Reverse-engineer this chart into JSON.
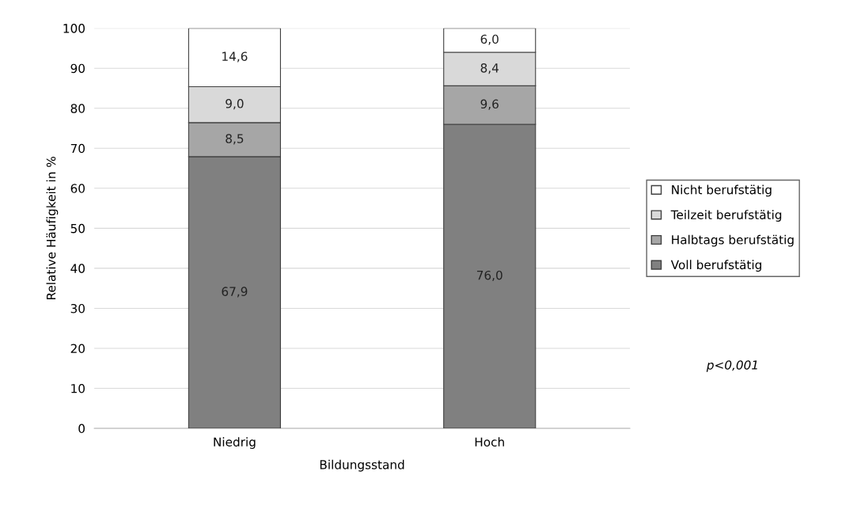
{
  "chart_data": {
    "type": "bar",
    "stacked": true,
    "xlabel": "Bildungsstand",
    "ylabel": "Relative Häufigkeit in %",
    "categories": [
      "Niedrig",
      "Hoch"
    ],
    "series": [
      {
        "name": "Voll berufstätig",
        "color": "#808080",
        "values": [
          67.9,
          76.0
        ],
        "value_labels": [
          "67,9",
          "76,0"
        ]
      },
      {
        "name": "Halbtags berufstätig",
        "color": "#a6a6a6",
        "values": [
          8.5,
          9.6
        ],
        "value_labels": [
          "8,5",
          "9,6"
        ]
      },
      {
        "name": "Teilzeit berufstätig",
        "color": "#d9d9d9",
        "values": [
          9.0,
          8.4
        ],
        "value_labels": [
          "9,0",
          "8,4"
        ]
      },
      {
        "name": "Nicht berufstätig",
        "color": "#ffffff",
        "values": [
          14.6,
          6.0
        ],
        "value_labels": [
          "14,6",
          "6,0"
        ]
      }
    ],
    "ylim": [
      0,
      100
    ],
    "yticks": [
      0,
      10,
      20,
      30,
      40,
      50,
      60,
      70,
      80,
      90,
      100
    ],
    "grid": "y",
    "legend": "right",
    "annotations": [
      "p<0,001"
    ]
  }
}
